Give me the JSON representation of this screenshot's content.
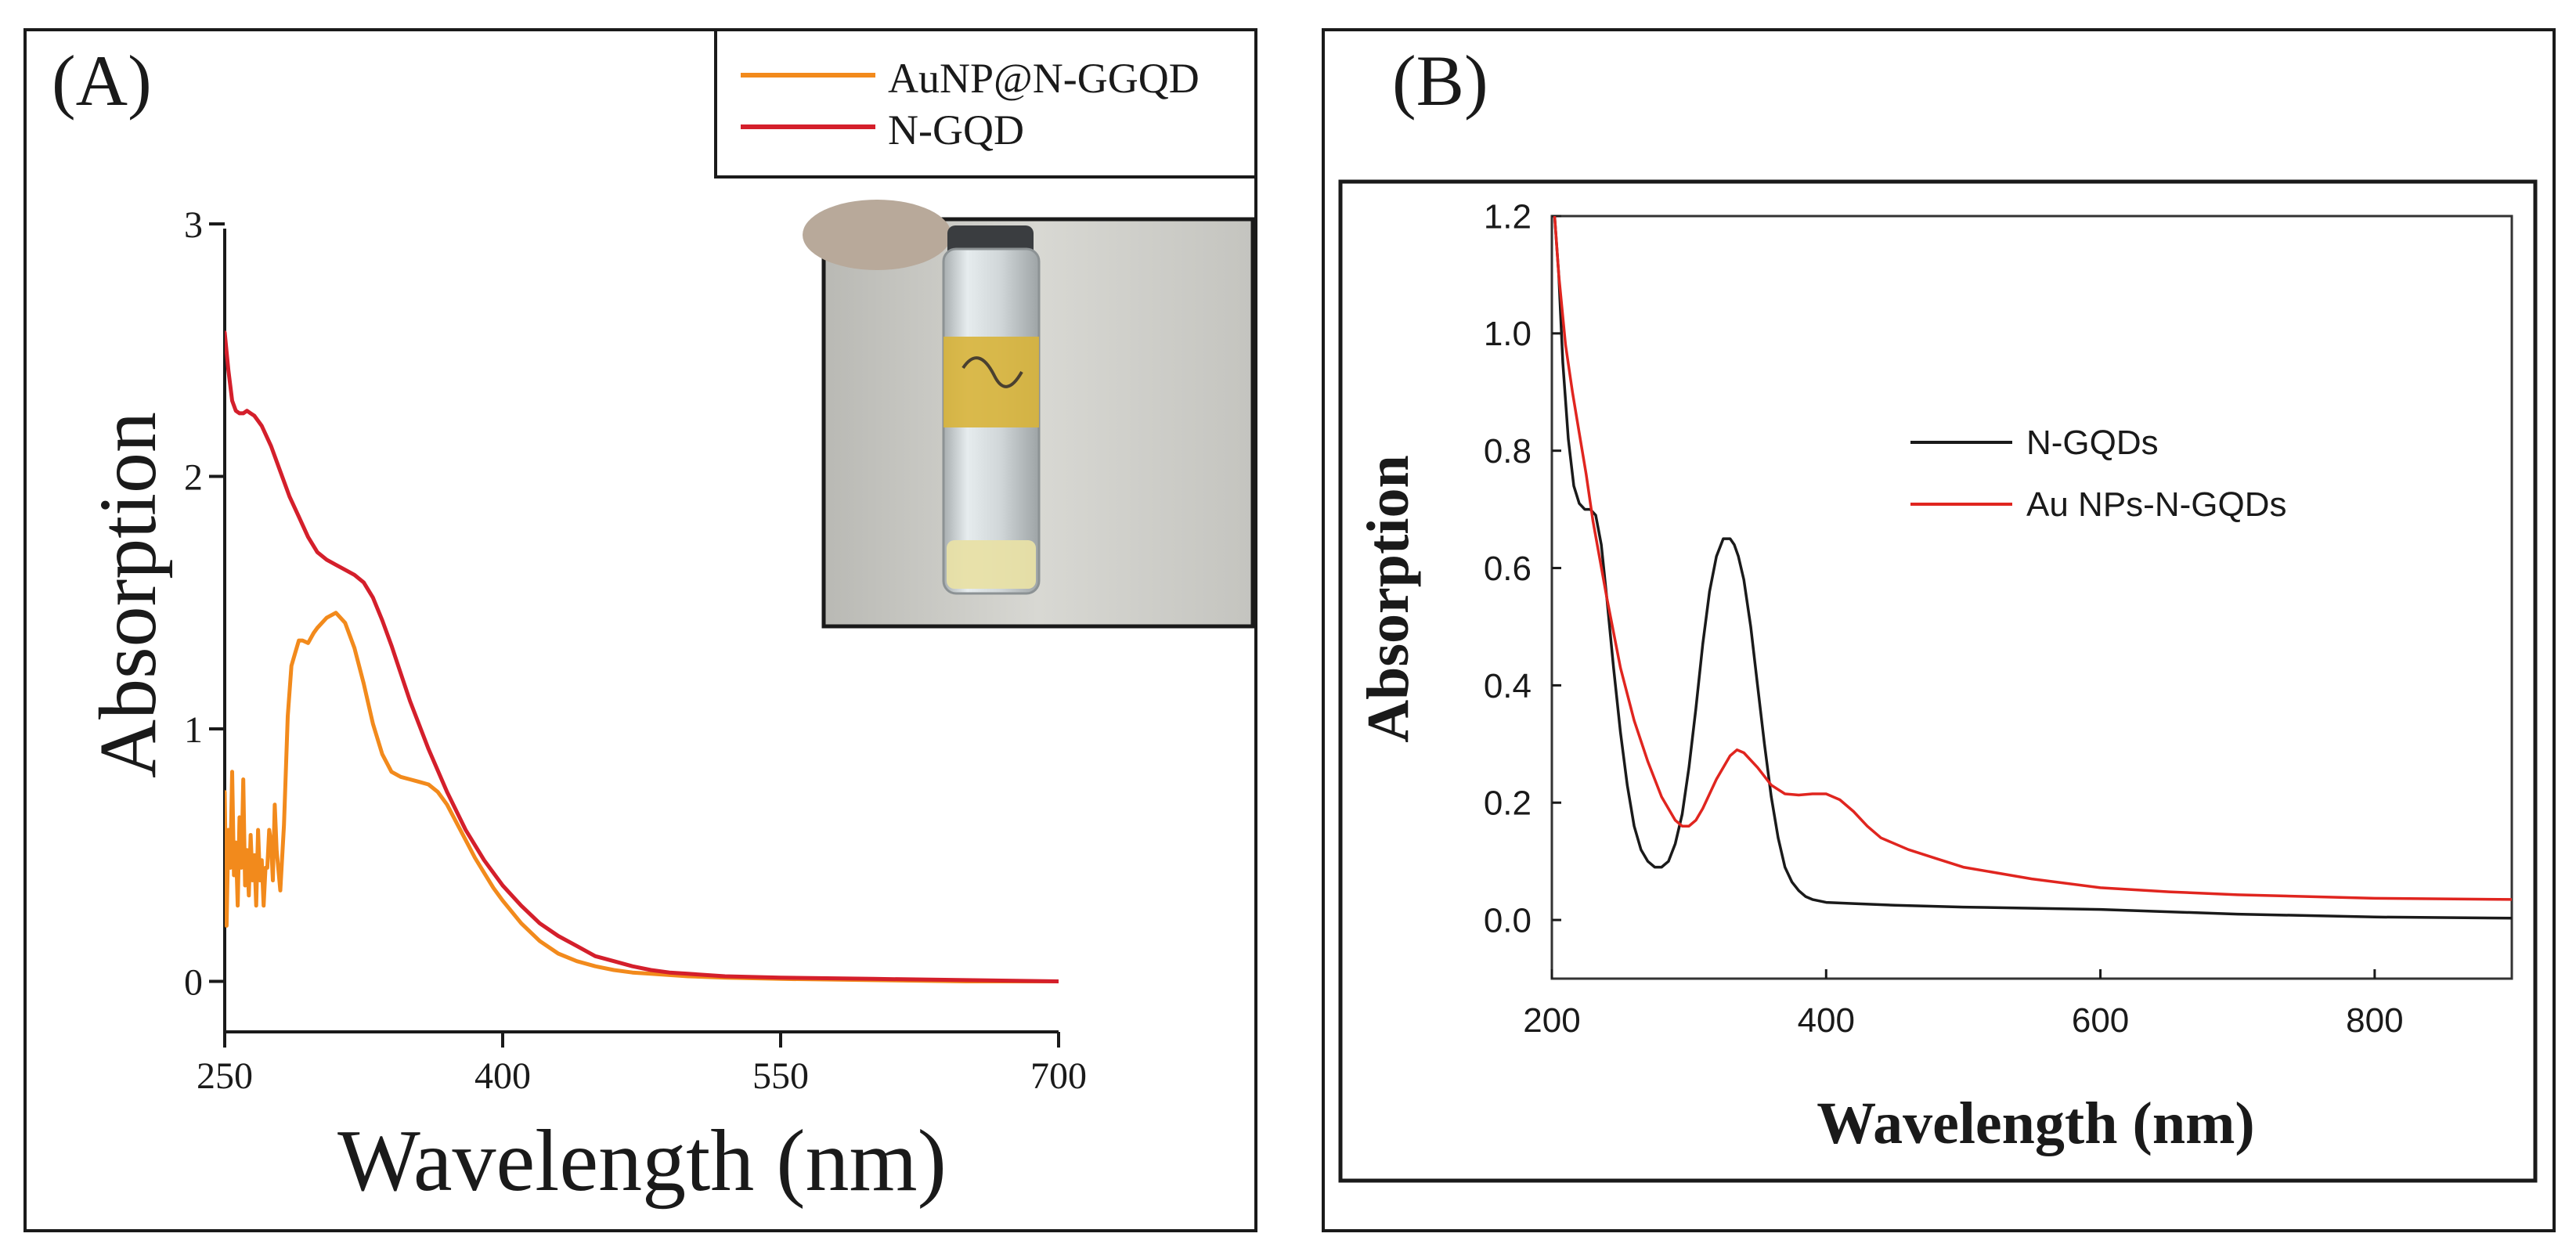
{
  "colors": {
    "orange": "#f28a1c",
    "red": "#d41f2b",
    "black": "#1a1a1a",
    "red_b": "#e0251f"
  },
  "chart_data": [
    {
      "type": "line",
      "panel_label": "(A)",
      "xlabel": "Wavelength (nm)",
      "ylabel": "Absorption",
      "xlim": [
        250,
        700
      ],
      "ylim": [
        -0.2,
        3.0
      ],
      "xticks": [
        250,
        400,
        550,
        700
      ],
      "xtick_labels": [
        "250",
        "400",
        "550",
        "700"
      ],
      "yticks": [
        0,
        1,
        2,
        3
      ],
      "ytick_labels": [
        "0",
        "1",
        "2",
        "3"
      ],
      "legend": {
        "position": "top-right",
        "entries": [
          "AuNP@N-GGQD",
          "N-GQD"
        ]
      },
      "inset": "photo-of-vial",
      "series": [
        {
          "name": "AuNP@N-GGQD",
          "color": "#f28a1c",
          "x": [
            250,
            251,
            252,
            253,
            254,
            255,
            256,
            257,
            258,
            259,
            260,
            261,
            262,
            263,
            264,
            265,
            266,
            267,
            268,
            269,
            270,
            271,
            272,
            273,
            274,
            275,
            276,
            277,
            278,
            280,
            282,
            284,
            286,
            288,
            290,
            292,
            295,
            298,
            300,
            305,
            310,
            315,
            320,
            325,
            330,
            335,
            340,
            345,
            350,
            355,
            360,
            365,
            370,
            375,
            380,
            385,
            390,
            395,
            400,
            410,
            420,
            430,
            440,
            450,
            460,
            470,
            480,
            490,
            500,
            520,
            550,
            600,
            650,
            700
          ],
          "y": [
            0.75,
            0.22,
            0.6,
            0.45,
            0.83,
            0.42,
            0.55,
            0.3,
            0.65,
            0.45,
            0.8,
            0.38,
            0.52,
            0.34,
            0.58,
            0.4,
            0.5,
            0.3,
            0.6,
            0.4,
            0.48,
            0.3,
            0.45,
            0.45,
            0.6,
            0.55,
            0.4,
            0.7,
            0.52,
            0.36,
            0.62,
            1.05,
            1.25,
            1.3,
            1.35,
            1.35,
            1.34,
            1.38,
            1.4,
            1.44,
            1.46,
            1.42,
            1.32,
            1.18,
            1.02,
            0.9,
            0.83,
            0.81,
            0.8,
            0.79,
            0.78,
            0.75,
            0.7,
            0.63,
            0.56,
            0.49,
            0.43,
            0.37,
            0.32,
            0.23,
            0.16,
            0.11,
            0.08,
            0.06,
            0.045,
            0.035,
            0.03,
            0.025,
            0.02,
            0.015,
            0.01,
            0.005,
            0.0,
            0.0
          ]
        },
        {
          "name": "N-GQD",
          "color": "#d41f2b",
          "x": [
            250,
            252,
            254,
            256,
            258,
            260,
            262,
            264,
            266,
            268,
            270,
            275,
            280,
            285,
            290,
            295,
            300,
            305,
            310,
            315,
            320,
            325,
            330,
            335,
            340,
            345,
            350,
            360,
            370,
            380,
            390,
            400,
            410,
            420,
            430,
            440,
            450,
            460,
            470,
            480,
            490,
            500,
            520,
            550,
            600,
            650,
            700
          ],
          "y": [
            2.57,
            2.42,
            2.3,
            2.26,
            2.25,
            2.25,
            2.26,
            2.25,
            2.24,
            2.22,
            2.2,
            2.12,
            2.02,
            1.92,
            1.84,
            1.76,
            1.7,
            1.67,
            1.65,
            1.63,
            1.61,
            1.58,
            1.52,
            1.43,
            1.33,
            1.22,
            1.11,
            0.92,
            0.75,
            0.6,
            0.48,
            0.38,
            0.3,
            0.23,
            0.18,
            0.14,
            0.1,
            0.08,
            0.06,
            0.045,
            0.035,
            0.03,
            0.02,
            0.015,
            0.01,
            0.005,
            0.0
          ]
        }
      ]
    },
    {
      "type": "line",
      "panel_label": "(B)",
      "xlabel": "Wavelength (nm)",
      "ylabel": "Absorption",
      "xlim": [
        200,
        900
      ],
      "ylim": [
        -0.1,
        1.2
      ],
      "xticks": [
        200,
        400,
        600,
        800
      ],
      "xtick_labels": [
        "200",
        "400",
        "600",
        "800"
      ],
      "yticks": [
        0.0,
        0.2,
        0.4,
        0.6,
        0.8,
        1.0,
        1.2
      ],
      "ytick_labels": [
        "0.0",
        "0.2",
        "0.4",
        "0.6",
        "0.8",
        "1.0",
        "1.2"
      ],
      "legend": {
        "position": "center-right",
        "entries": [
          "N-GQDs",
          "Au NPs-N-GQDs"
        ]
      },
      "series": [
        {
          "name": "N-GQDs",
          "color": "#1a1a1a",
          "x": [
            202,
            205,
            208,
            212,
            216,
            220,
            224,
            228,
            232,
            236,
            240,
            245,
            250,
            255,
            260,
            265,
            270,
            275,
            280,
            285,
            290,
            295,
            300,
            305,
            310,
            315,
            320,
            325,
            330,
            333,
            336,
            340,
            345,
            350,
            355,
            360,
            365,
            370,
            375,
            380,
            385,
            390,
            400,
            420,
            450,
            500,
            600,
            700,
            800,
            900
          ],
          "y": [
            1.2,
            1.1,
            0.95,
            0.82,
            0.74,
            0.71,
            0.7,
            0.7,
            0.69,
            0.64,
            0.55,
            0.43,
            0.32,
            0.23,
            0.16,
            0.12,
            0.1,
            0.09,
            0.09,
            0.1,
            0.13,
            0.18,
            0.26,
            0.36,
            0.47,
            0.56,
            0.62,
            0.65,
            0.65,
            0.64,
            0.62,
            0.58,
            0.5,
            0.4,
            0.3,
            0.21,
            0.14,
            0.09,
            0.065,
            0.05,
            0.04,
            0.035,
            0.03,
            0.028,
            0.025,
            0.022,
            0.018,
            0.01,
            0.005,
            0.003
          ]
        },
        {
          "name": "Au NPs-N-GQDs",
          "color": "#e0251f",
          "x": [
            202,
            205,
            210,
            215,
            220,
            225,
            230,
            240,
            250,
            260,
            270,
            280,
            290,
            295,
            300,
            305,
            310,
            320,
            330,
            335,
            340,
            350,
            360,
            370,
            380,
            390,
            400,
            410,
            420,
            430,
            440,
            460,
            480,
            500,
            550,
            600,
            650,
            700,
            750,
            800,
            850,
            900
          ],
          "y": [
            1.2,
            1.1,
            0.98,
            0.9,
            0.83,
            0.76,
            0.68,
            0.55,
            0.43,
            0.34,
            0.27,
            0.21,
            0.17,
            0.16,
            0.16,
            0.17,
            0.19,
            0.24,
            0.28,
            0.29,
            0.285,
            0.26,
            0.23,
            0.215,
            0.213,
            0.215,
            0.215,
            0.205,
            0.185,
            0.16,
            0.14,
            0.12,
            0.105,
            0.09,
            0.07,
            0.055,
            0.048,
            0.043,
            0.04,
            0.037,
            0.036,
            0.035
          ]
        }
      ]
    }
  ]
}
